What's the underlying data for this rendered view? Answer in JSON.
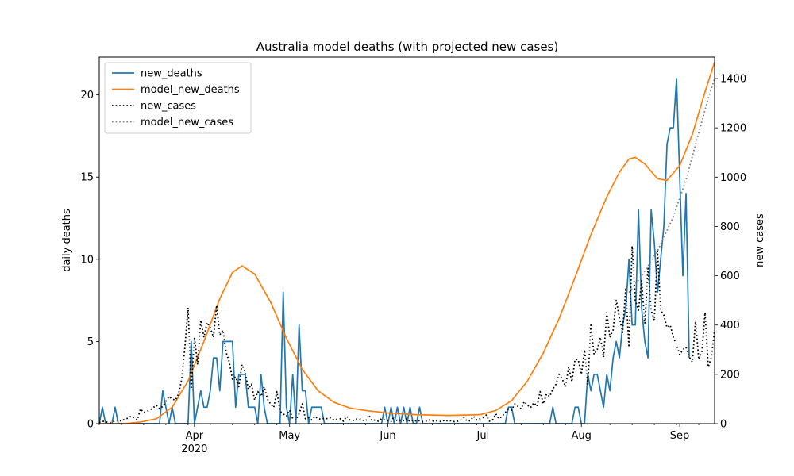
{
  "chart_data": {
    "type": "line",
    "title": "Australia model deaths (with projected new cases)",
    "ylabel_left": "daily deaths",
    "ylabel_right": "new cases",
    "xlabel": "",
    "xlim": [
      "2020-03-02",
      "2020-09-12"
    ],
    "ylim_left": [
      0,
      22.3
    ],
    "ylim_right": [
      0,
      1487
    ],
    "x_ticks": [
      {
        "date": "2020-04-01",
        "label": "Apr",
        "sublabel": "2020"
      },
      {
        "date": "2020-05-01",
        "label": "May",
        "sublabel": ""
      },
      {
        "date": "2020-06-01",
        "label": "Jun",
        "sublabel": ""
      },
      {
        "date": "2020-07-01",
        "label": "Jul",
        "sublabel": ""
      },
      {
        "date": "2020-08-01",
        "label": "Aug",
        "sublabel": ""
      },
      {
        "date": "2020-09-01",
        "label": "Sep",
        "sublabel": ""
      }
    ],
    "y_ticks_left": [
      "0",
      "5",
      "10",
      "15",
      "20"
    ],
    "y_ticks_right": [
      "0",
      "200",
      "400",
      "600",
      "800",
      "1000",
      "1200",
      "1400"
    ],
    "legend": {
      "position": "upper-left",
      "entries": [
        "new_deaths",
        "model_new_deaths",
        "new_cases",
        "model_new_cases"
      ]
    },
    "series": [
      {
        "name": "new_deaths",
        "axis": "left",
        "color": "#1f77b4",
        "style": "solid",
        "start": "2020-03-02",
        "values": [
          0,
          1,
          0,
          0,
          0,
          1,
          0,
          0,
          0,
          0,
          0,
          0,
          0,
          0,
          0,
          0,
          0,
          0,
          0,
          0,
          2,
          1,
          0,
          1,
          0,
          0,
          0,
          0,
          0,
          5,
          0,
          1,
          2,
          1,
          1,
          2,
          4,
          4,
          2,
          5,
          5,
          5,
          5,
          1,
          3,
          3,
          3,
          1,
          1,
          1,
          0,
          3,
          1,
          0,
          0,
          0,
          0,
          0,
          8,
          1,
          0,
          3,
          0,
          6,
          2,
          2,
          0,
          1,
          1,
          1,
          1,
          0,
          0,
          0,
          0,
          0,
          0,
          0,
          0,
          0,
          0,
          0,
          0,
          0,
          0,
          0,
          0,
          0,
          0,
          0,
          1,
          0,
          1,
          0,
          1,
          0,
          1,
          0,
          1,
          0,
          0,
          1,
          0,
          0,
          0,
          0,
          0,
          0,
          0,
          0,
          0,
          0,
          0,
          0,
          0,
          0,
          0,
          0,
          0,
          0,
          0,
          0,
          0,
          0,
          0,
          0,
          0,
          0,
          0,
          1,
          1,
          0,
          0,
          0,
          0,
          0,
          0,
          0,
          0,
          0,
          0,
          0,
          0,
          1,
          0,
          0,
          0,
          0,
          0,
          0,
          1,
          1,
          0,
          0,
          3,
          2,
          3,
          3,
          2,
          1,
          3,
          2,
          4,
          5,
          4,
          6,
          7,
          10,
          6,
          6,
          13,
          7,
          5,
          4,
          13,
          11,
          8,
          10,
          12,
          17,
          18,
          18,
          21,
          15,
          9,
          14,
          4
        ]
      },
      {
        "name": "model_new_deaths",
        "axis": "left",
        "color": "#ff7f0e",
        "style": "solid",
        "points": [
          [
            "2020-03-02",
            0.0
          ],
          [
            "2020-03-10",
            0.0
          ],
          [
            "2020-03-15",
            0.1
          ],
          [
            "2020-03-20",
            0.3
          ],
          [
            "2020-03-25",
            1.0
          ],
          [
            "2020-03-30",
            2.6
          ],
          [
            "2020-04-04",
            5.0
          ],
          [
            "2020-04-09",
            7.6
          ],
          [
            "2020-04-13",
            9.2
          ],
          [
            "2020-04-16",
            9.6
          ],
          [
            "2020-04-20",
            9.1
          ],
          [
            "2020-04-25",
            7.4
          ],
          [
            "2020-04-30",
            5.2
          ],
          [
            "2020-05-05",
            3.3
          ],
          [
            "2020-05-10",
            2.0
          ],
          [
            "2020-05-15",
            1.3
          ],
          [
            "2020-05-20",
            0.95
          ],
          [
            "2020-05-25",
            0.8
          ],
          [
            "2020-06-01",
            0.65
          ],
          [
            "2020-06-10",
            0.55
          ],
          [
            "2020-06-20",
            0.5
          ],
          [
            "2020-06-30",
            0.55
          ],
          [
            "2020-07-05",
            0.8
          ],
          [
            "2020-07-10",
            1.4
          ],
          [
            "2020-07-15",
            2.6
          ],
          [
            "2020-07-20",
            4.3
          ],
          [
            "2020-07-25",
            6.4
          ],
          [
            "2020-07-30",
            8.9
          ],
          [
            "2020-08-04",
            11.5
          ],
          [
            "2020-08-09",
            13.8
          ],
          [
            "2020-08-13",
            15.3
          ],
          [
            "2020-08-16",
            16.1
          ],
          [
            "2020-08-18",
            16.2
          ],
          [
            "2020-08-21",
            15.8
          ],
          [
            "2020-08-25",
            14.9
          ],
          [
            "2020-08-28",
            14.8
          ],
          [
            "2020-09-01",
            15.7
          ],
          [
            "2020-09-05",
            17.6
          ],
          [
            "2020-09-09",
            20.2
          ],
          [
            "2020-09-12",
            22.0
          ]
        ]
      },
      {
        "name": "new_cases",
        "axis": "right",
        "color": "#000000",
        "style": "dotted",
        "start": "2020-03-02",
        "values": [
          5,
          10,
          8,
          3,
          5,
          12,
          15,
          10,
          18,
          22,
          30,
          25,
          15,
          60,
          45,
          50,
          55,
          65,
          75,
          60,
          70,
          90,
          110,
          100,
          95,
          120,
          180,
          310,
          470,
          140,
          350,
          240,
          420,
          350,
          410,
          390,
          350,
          480,
          360,
          380,
          290,
          250,
          180,
          190,
          150,
          240,
          210,
          140,
          160,
          95,
          130,
          110,
          150,
          100,
          80,
          65,
          130,
          50,
          40,
          30,
          55,
          20,
          15,
          40,
          80,
          20,
          25,
          15,
          30,
          20,
          18,
          22,
          20,
          25,
          15,
          18,
          20,
          10,
          30,
          15,
          12,
          18,
          20,
          15,
          10,
          35,
          12,
          15,
          10,
          20,
          15,
          12,
          8,
          30,
          10,
          15,
          12,
          20,
          8,
          15,
          10,
          12,
          8,
          10,
          15,
          10,
          12,
          10,
          8,
          15,
          10,
          12,
          8,
          10,
          15,
          25,
          10,
          12,
          30,
          15,
          20,
          25,
          35,
          10,
          15,
          40,
          20,
          30,
          45,
          60,
          55,
          80,
          70,
          60,
          90,
          75,
          65,
          85,
          70,
          130,
          80,
          120,
          110,
          140,
          160,
          200,
          180,
          150,
          230,
          170,
          260,
          260,
          200,
          300,
          160,
          400,
          280,
          300,
          350,
          270,
          450,
          350,
          380,
          500,
          430,
          370,
          550,
          310,
          720,
          500,
          460,
          580,
          400,
          630,
          460,
          420,
          700,
          460,
          440,
          390,
          400,
          350,
          320,
          280,
          300,
          310,
          270,
          250,
          420,
          260,
          290,
          450,
          230,
          270,
          380
        ]
      },
      {
        "name": "model_new_cases",
        "axis": "right",
        "color": "#7f7f7f",
        "style": "dotted",
        "points": [
          [
            "2020-08-16",
            532
          ],
          [
            "2020-08-20",
            600
          ],
          [
            "2020-08-25",
            700
          ],
          [
            "2020-08-30",
            840
          ],
          [
            "2020-09-03",
            990
          ],
          [
            "2020-09-07",
            1180
          ],
          [
            "2020-09-10",
            1320
          ],
          [
            "2020-09-12",
            1400
          ]
        ]
      }
    ]
  }
}
